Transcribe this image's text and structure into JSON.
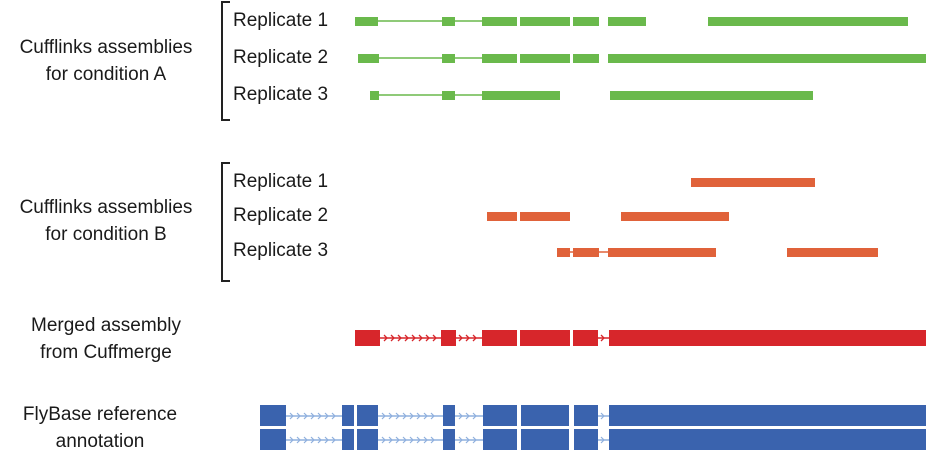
{
  "groups": {
    "condition_a": {
      "line1": "Cufflinks assemblies",
      "line2": "for condition A",
      "replicates": [
        "Replicate 1",
        "Replicate 2",
        "Replicate 3"
      ]
    },
    "condition_b": {
      "line1": "Cufflinks assemblies",
      "line2": "for condition B",
      "replicates": [
        "Replicate 1",
        "Replicate 2",
        "Replicate 3"
      ]
    },
    "merged": {
      "line1": "Merged assembly",
      "line2": "from Cuffmerge"
    },
    "reference": {
      "line1": "FlyBase reference",
      "line2": "annotation"
    }
  },
  "colors": {
    "condition_a": "#6ab94c",
    "condition_b": "#e0623a",
    "merged": "#d7262b",
    "reference": "#3a63ae",
    "intron_reference": "#8fb0de",
    "bracket": "#222222"
  }
}
